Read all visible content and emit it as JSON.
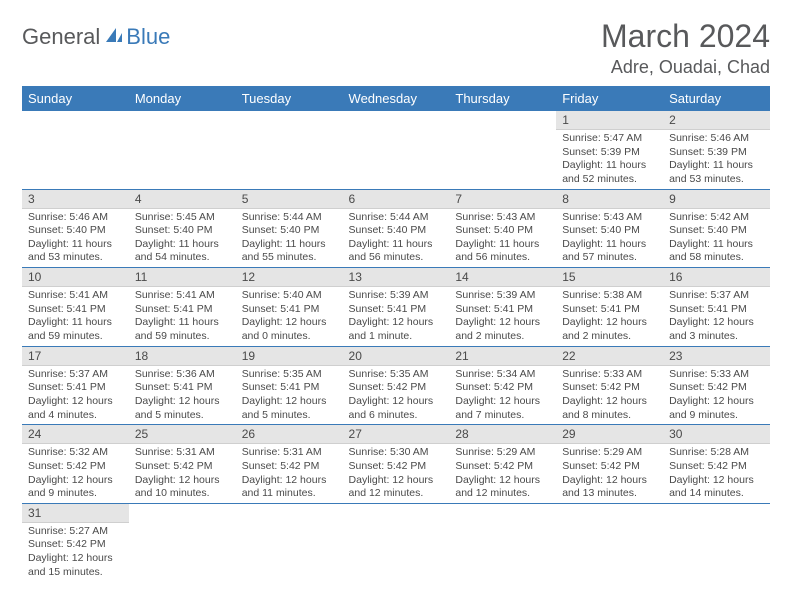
{
  "logo": {
    "text1": "General",
    "text2": "Blue"
  },
  "title": "March 2024",
  "location": "Adre, Ouadai, Chad",
  "colors": {
    "header_bg": "#3a7ab8",
    "header_fg": "#ffffff",
    "daynum_bg": "#e5e5e5",
    "border": "#3a7ab8",
    "text": "#4a4a4a",
    "logo_gray": "#58595b",
    "logo_blue": "#3a7ab8"
  },
  "weekdays": [
    "Sunday",
    "Monday",
    "Tuesday",
    "Wednesday",
    "Thursday",
    "Friday",
    "Saturday"
  ],
  "weeks": [
    [
      null,
      null,
      null,
      null,
      null,
      {
        "n": "1",
        "sr": "Sunrise: 5:47 AM",
        "ss": "Sunset: 5:39 PM",
        "dl": "Daylight: 11 hours and 52 minutes."
      },
      {
        "n": "2",
        "sr": "Sunrise: 5:46 AM",
        "ss": "Sunset: 5:39 PM",
        "dl": "Daylight: 11 hours and 53 minutes."
      }
    ],
    [
      {
        "n": "3",
        "sr": "Sunrise: 5:46 AM",
        "ss": "Sunset: 5:40 PM",
        "dl": "Daylight: 11 hours and 53 minutes."
      },
      {
        "n": "4",
        "sr": "Sunrise: 5:45 AM",
        "ss": "Sunset: 5:40 PM",
        "dl": "Daylight: 11 hours and 54 minutes."
      },
      {
        "n": "5",
        "sr": "Sunrise: 5:44 AM",
        "ss": "Sunset: 5:40 PM",
        "dl": "Daylight: 11 hours and 55 minutes."
      },
      {
        "n": "6",
        "sr": "Sunrise: 5:44 AM",
        "ss": "Sunset: 5:40 PM",
        "dl": "Daylight: 11 hours and 56 minutes."
      },
      {
        "n": "7",
        "sr": "Sunrise: 5:43 AM",
        "ss": "Sunset: 5:40 PM",
        "dl": "Daylight: 11 hours and 56 minutes."
      },
      {
        "n": "8",
        "sr": "Sunrise: 5:43 AM",
        "ss": "Sunset: 5:40 PM",
        "dl": "Daylight: 11 hours and 57 minutes."
      },
      {
        "n": "9",
        "sr": "Sunrise: 5:42 AM",
        "ss": "Sunset: 5:40 PM",
        "dl": "Daylight: 11 hours and 58 minutes."
      }
    ],
    [
      {
        "n": "10",
        "sr": "Sunrise: 5:41 AM",
        "ss": "Sunset: 5:41 PM",
        "dl": "Daylight: 11 hours and 59 minutes."
      },
      {
        "n": "11",
        "sr": "Sunrise: 5:41 AM",
        "ss": "Sunset: 5:41 PM",
        "dl": "Daylight: 11 hours and 59 minutes."
      },
      {
        "n": "12",
        "sr": "Sunrise: 5:40 AM",
        "ss": "Sunset: 5:41 PM",
        "dl": "Daylight: 12 hours and 0 minutes."
      },
      {
        "n": "13",
        "sr": "Sunrise: 5:39 AM",
        "ss": "Sunset: 5:41 PM",
        "dl": "Daylight: 12 hours and 1 minute."
      },
      {
        "n": "14",
        "sr": "Sunrise: 5:39 AM",
        "ss": "Sunset: 5:41 PM",
        "dl": "Daylight: 12 hours and 2 minutes."
      },
      {
        "n": "15",
        "sr": "Sunrise: 5:38 AM",
        "ss": "Sunset: 5:41 PM",
        "dl": "Daylight: 12 hours and 2 minutes."
      },
      {
        "n": "16",
        "sr": "Sunrise: 5:37 AM",
        "ss": "Sunset: 5:41 PM",
        "dl": "Daylight: 12 hours and 3 minutes."
      }
    ],
    [
      {
        "n": "17",
        "sr": "Sunrise: 5:37 AM",
        "ss": "Sunset: 5:41 PM",
        "dl": "Daylight: 12 hours and 4 minutes."
      },
      {
        "n": "18",
        "sr": "Sunrise: 5:36 AM",
        "ss": "Sunset: 5:41 PM",
        "dl": "Daylight: 12 hours and 5 minutes."
      },
      {
        "n": "19",
        "sr": "Sunrise: 5:35 AM",
        "ss": "Sunset: 5:41 PM",
        "dl": "Daylight: 12 hours and 5 minutes."
      },
      {
        "n": "20",
        "sr": "Sunrise: 5:35 AM",
        "ss": "Sunset: 5:42 PM",
        "dl": "Daylight: 12 hours and 6 minutes."
      },
      {
        "n": "21",
        "sr": "Sunrise: 5:34 AM",
        "ss": "Sunset: 5:42 PM",
        "dl": "Daylight: 12 hours and 7 minutes."
      },
      {
        "n": "22",
        "sr": "Sunrise: 5:33 AM",
        "ss": "Sunset: 5:42 PM",
        "dl": "Daylight: 12 hours and 8 minutes."
      },
      {
        "n": "23",
        "sr": "Sunrise: 5:33 AM",
        "ss": "Sunset: 5:42 PM",
        "dl": "Daylight: 12 hours and 9 minutes."
      }
    ],
    [
      {
        "n": "24",
        "sr": "Sunrise: 5:32 AM",
        "ss": "Sunset: 5:42 PM",
        "dl": "Daylight: 12 hours and 9 minutes."
      },
      {
        "n": "25",
        "sr": "Sunrise: 5:31 AM",
        "ss": "Sunset: 5:42 PM",
        "dl": "Daylight: 12 hours and 10 minutes."
      },
      {
        "n": "26",
        "sr": "Sunrise: 5:31 AM",
        "ss": "Sunset: 5:42 PM",
        "dl": "Daylight: 12 hours and 11 minutes."
      },
      {
        "n": "27",
        "sr": "Sunrise: 5:30 AM",
        "ss": "Sunset: 5:42 PM",
        "dl": "Daylight: 12 hours and 12 minutes."
      },
      {
        "n": "28",
        "sr": "Sunrise: 5:29 AM",
        "ss": "Sunset: 5:42 PM",
        "dl": "Daylight: 12 hours and 12 minutes."
      },
      {
        "n": "29",
        "sr": "Sunrise: 5:29 AM",
        "ss": "Sunset: 5:42 PM",
        "dl": "Daylight: 12 hours and 13 minutes."
      },
      {
        "n": "30",
        "sr": "Sunrise: 5:28 AM",
        "ss": "Sunset: 5:42 PM",
        "dl": "Daylight: 12 hours and 14 minutes."
      }
    ],
    [
      {
        "n": "31",
        "sr": "Sunrise: 5:27 AM",
        "ss": "Sunset: 5:42 PM",
        "dl": "Daylight: 12 hours and 15 minutes."
      },
      null,
      null,
      null,
      null,
      null,
      null
    ]
  ]
}
